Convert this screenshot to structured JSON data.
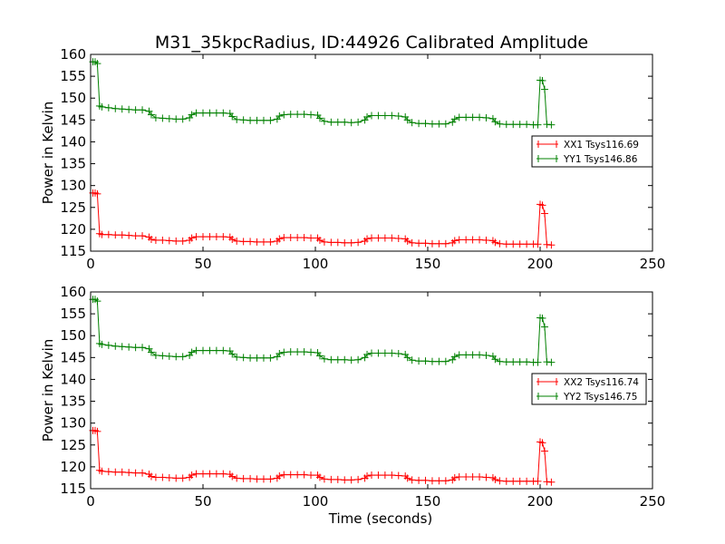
{
  "figure": {
    "title": "M31_35kpcRadius, ID:44926 Calibrated Amplitude"
  },
  "chart_data": [
    {
      "type": "line",
      "title": "M31_35kpcRadius, ID:44926 Calibrated Amplitude",
      "xlabel": "",
      "ylabel": "Power in Kelvin",
      "xlim": [
        0,
        250
      ],
      "ylim": [
        115,
        160
      ],
      "xticks": [
        0,
        50,
        100,
        150,
        200,
        250
      ],
      "yticks": [
        115,
        120,
        125,
        130,
        135,
        140,
        145,
        150,
        155,
        160
      ],
      "grid": false,
      "legend_position": "right",
      "series": [
        {
          "name": "XX1 Tsys116.69",
          "color": "#ff0000",
          "x": [
            1,
            2,
            3,
            4,
            5,
            8,
            11,
            14,
            17,
            20,
            23,
            26,
            27,
            29,
            32,
            35,
            38,
            41,
            44,
            45,
            47,
            50,
            53,
            56,
            59,
            62,
            63,
            65,
            68,
            71,
            74,
            77,
            80,
            83,
            84,
            86,
            89,
            92,
            95,
            98,
            101,
            102,
            104,
            107,
            110,
            113,
            116,
            119,
            122,
            123,
            125,
            128,
            131,
            134,
            137,
            140,
            141,
            143,
            146,
            149,
            152,
            155,
            158,
            161,
            162,
            164,
            167,
            170,
            173,
            176,
            179,
            180,
            182,
            185,
            188,
            191,
            194,
            197,
            199,
            200,
            201,
            202,
            203,
            205
          ],
          "values": [
            128.3,
            128.3,
            128.1,
            119.0,
            118.8,
            118.8,
            118.7,
            118.7,
            118.6,
            118.5,
            118.5,
            118.2,
            117.7,
            117.5,
            117.5,
            117.4,
            117.3,
            117.3,
            117.5,
            118.0,
            118.3,
            118.3,
            118.3,
            118.3,
            118.3,
            118.2,
            117.7,
            117.3,
            117.2,
            117.2,
            117.1,
            117.1,
            117.1,
            117.3,
            117.8,
            118.1,
            118.1,
            118.1,
            118.1,
            118.0,
            118.0,
            117.5,
            117.1,
            117.0,
            117.0,
            116.9,
            116.9,
            117.0,
            117.3,
            117.8,
            118.0,
            118.0,
            118.0,
            118.0,
            117.9,
            117.8,
            117.3,
            116.9,
            116.8,
            116.8,
            116.7,
            116.7,
            116.7,
            116.9,
            117.4,
            117.6,
            117.6,
            117.6,
            117.6,
            117.5,
            117.4,
            117.0,
            116.7,
            116.6,
            116.6,
            116.6,
            116.6,
            116.6,
            116.6,
            125.7,
            125.5,
            123.6,
            116.5,
            116.4
          ]
        },
        {
          "name": "YY1 Tsys146.86",
          "color": "#008000",
          "x": [
            1,
            2,
            3,
            4,
            5,
            8,
            11,
            14,
            17,
            20,
            23,
            26,
            27,
            29,
            32,
            35,
            38,
            41,
            44,
            45,
            47,
            50,
            53,
            56,
            59,
            62,
            63,
            65,
            68,
            71,
            74,
            77,
            80,
            83,
            84,
            86,
            89,
            92,
            95,
            98,
            101,
            102,
            104,
            107,
            110,
            113,
            116,
            119,
            122,
            123,
            125,
            128,
            131,
            134,
            137,
            140,
            141,
            143,
            146,
            149,
            152,
            155,
            158,
            161,
            162,
            164,
            167,
            170,
            173,
            176,
            179,
            180,
            182,
            185,
            188,
            191,
            194,
            197,
            199,
            200,
            201,
            202,
            203,
            205
          ],
          "values": [
            158.3,
            158.3,
            157.9,
            148.2,
            148.0,
            147.8,
            147.6,
            147.5,
            147.4,
            147.3,
            147.3,
            147.0,
            146.2,
            145.5,
            145.4,
            145.3,
            145.2,
            145.2,
            145.5,
            146.2,
            146.6,
            146.6,
            146.6,
            146.6,
            146.6,
            146.5,
            145.8,
            145.1,
            145.0,
            144.9,
            144.9,
            144.9,
            144.9,
            145.2,
            145.9,
            146.2,
            146.3,
            146.3,
            146.3,
            146.2,
            146.1,
            145.4,
            144.7,
            144.5,
            144.5,
            144.5,
            144.4,
            144.5,
            145.0,
            145.7,
            146.0,
            146.0,
            146.0,
            146.0,
            145.9,
            145.7,
            145.0,
            144.4,
            144.2,
            144.2,
            144.1,
            144.1,
            144.1,
            144.5,
            145.2,
            145.6,
            145.6,
            145.6,
            145.6,
            145.5,
            145.3,
            144.6,
            144.1,
            144.0,
            144.0,
            144.0,
            144.0,
            143.9,
            143.9,
            154.1,
            154.0,
            152.0,
            144.0,
            143.9
          ]
        }
      ]
    },
    {
      "type": "line",
      "title": "",
      "xlabel": "Time (seconds)",
      "ylabel": "Power in Kelvin",
      "xlim": [
        0,
        250
      ],
      "ylim": [
        115,
        160
      ],
      "xticks": [
        0,
        50,
        100,
        150,
        200,
        250
      ],
      "yticks": [
        115,
        120,
        125,
        130,
        135,
        140,
        145,
        150,
        155,
        160
      ],
      "grid": false,
      "legend_position": "right",
      "series": [
        {
          "name": "XX2 Tsys116.74",
          "color": "#ff0000",
          "x": [
            1,
            2,
            3,
            4,
            5,
            8,
            11,
            14,
            17,
            20,
            23,
            26,
            27,
            29,
            32,
            35,
            38,
            41,
            44,
            45,
            47,
            50,
            53,
            56,
            59,
            62,
            63,
            65,
            68,
            71,
            74,
            77,
            80,
            83,
            84,
            86,
            89,
            92,
            95,
            98,
            101,
            102,
            104,
            107,
            110,
            113,
            116,
            119,
            122,
            123,
            125,
            128,
            131,
            134,
            137,
            140,
            141,
            143,
            146,
            149,
            152,
            155,
            158,
            161,
            162,
            164,
            167,
            170,
            173,
            176,
            179,
            180,
            182,
            185,
            188,
            191,
            194,
            197,
            199,
            200,
            201,
            202,
            203,
            205
          ],
          "values": [
            128.3,
            128.3,
            128.1,
            119.2,
            119.0,
            118.9,
            118.8,
            118.8,
            118.7,
            118.6,
            118.6,
            118.3,
            117.8,
            117.6,
            117.6,
            117.5,
            117.4,
            117.4,
            117.6,
            118.1,
            118.4,
            118.4,
            118.4,
            118.4,
            118.4,
            118.3,
            117.8,
            117.4,
            117.3,
            117.3,
            117.2,
            117.2,
            117.2,
            117.4,
            117.9,
            118.2,
            118.2,
            118.2,
            118.2,
            118.1,
            118.1,
            117.6,
            117.2,
            117.1,
            117.1,
            117.0,
            117.0,
            117.1,
            117.4,
            117.9,
            118.1,
            118.1,
            118.1,
            118.1,
            118.0,
            117.9,
            117.4,
            117.0,
            116.9,
            116.9,
            116.8,
            116.8,
            116.8,
            117.0,
            117.5,
            117.7,
            117.7,
            117.7,
            117.7,
            117.6,
            117.5,
            117.1,
            116.8,
            116.7,
            116.7,
            116.7,
            116.7,
            116.7,
            116.7,
            125.7,
            125.5,
            123.6,
            116.6,
            116.5
          ]
        },
        {
          "name": "YY2 Tsys146.75",
          "color": "#008000",
          "x": [
            1,
            2,
            3,
            4,
            5,
            8,
            11,
            14,
            17,
            20,
            23,
            26,
            27,
            29,
            32,
            35,
            38,
            41,
            44,
            45,
            47,
            50,
            53,
            56,
            59,
            62,
            63,
            65,
            68,
            71,
            74,
            77,
            80,
            83,
            84,
            86,
            89,
            92,
            95,
            98,
            101,
            102,
            104,
            107,
            110,
            113,
            116,
            119,
            122,
            123,
            125,
            128,
            131,
            134,
            137,
            140,
            141,
            143,
            146,
            149,
            152,
            155,
            158,
            161,
            162,
            164,
            167,
            170,
            173,
            176,
            179,
            180,
            182,
            185,
            188,
            191,
            194,
            197,
            199,
            200,
            201,
            202,
            203,
            205
          ],
          "values": [
            158.3,
            158.3,
            157.9,
            148.2,
            148.0,
            147.8,
            147.6,
            147.5,
            147.4,
            147.3,
            147.3,
            147.0,
            146.2,
            145.5,
            145.4,
            145.3,
            145.2,
            145.2,
            145.5,
            146.2,
            146.6,
            146.6,
            146.6,
            146.6,
            146.6,
            146.5,
            145.8,
            145.1,
            145.0,
            144.9,
            144.9,
            144.9,
            144.9,
            145.2,
            145.9,
            146.2,
            146.3,
            146.3,
            146.3,
            146.2,
            146.1,
            145.4,
            144.7,
            144.5,
            144.5,
            144.5,
            144.4,
            144.5,
            145.0,
            145.7,
            146.0,
            146.0,
            146.0,
            146.0,
            145.9,
            145.7,
            145.0,
            144.4,
            144.2,
            144.2,
            144.1,
            144.1,
            144.1,
            144.5,
            145.2,
            145.6,
            145.6,
            145.6,
            145.6,
            145.5,
            145.3,
            144.6,
            144.1,
            144.0,
            144.0,
            144.0,
            144.0,
            143.9,
            143.9,
            154.1,
            154.0,
            152.0,
            144.0,
            143.9
          ]
        }
      ]
    }
  ]
}
